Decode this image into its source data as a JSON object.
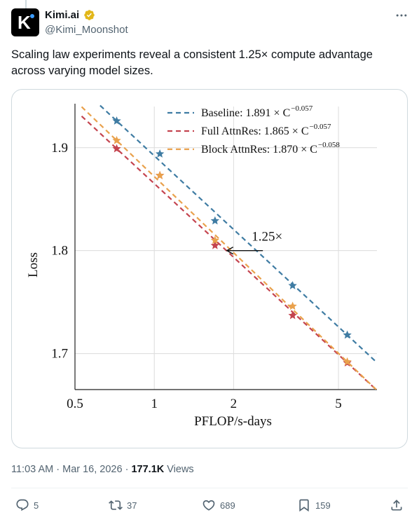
{
  "author": {
    "name": "Kimi.ai",
    "handle": "@Kimi_Moonshot",
    "avatar_letter": "K",
    "verified_icon": "verified-badge-icon",
    "verified_color": "#e2b719"
  },
  "tweet": {
    "text": "Scaling law experiments reveal a consistent 1.25× compute advantage across varying model sizes."
  },
  "meta": {
    "time": "11:03 AM",
    "dot1": "·",
    "date": "Mar 16, 2026",
    "dot2": "·",
    "views_count": "177.1K",
    "views_label": "Views"
  },
  "actions": {
    "replies": "5",
    "reposts": "37",
    "likes": "689",
    "bookmarks": "159"
  },
  "colors": {
    "baseline": "#3f7ca3",
    "full": "#c4444f",
    "block": "#e9a14c"
  },
  "chart_data": {
    "type": "line",
    "xscale": "log",
    "xlabel": "PFLOP/s-days",
    "ylabel": "Loss",
    "xlim": [
      0.5,
      7.0
    ],
    "ylim": [
      1.665,
      1.94
    ],
    "xticks": [
      {
        "value": 0.5,
        "label": "0.5"
      },
      {
        "value": 1,
        "label": "1"
      },
      {
        "value": 2,
        "label": "2"
      },
      {
        "value": 5,
        "label": "5"
      }
    ],
    "yticks": [
      {
        "value": 1.7,
        "label": "1.7"
      },
      {
        "value": 1.8,
        "label": "1.8"
      },
      {
        "value": 1.9,
        "label": "1.9"
      }
    ],
    "grid": true,
    "legend_position": "top-right",
    "series": [
      {
        "key": "baseline",
        "name": "Baseline: 1.891 × C",
        "exponent": "−0.057",
        "a": 1.891,
        "b": -0.057,
        "points": [
          [
            0.72,
            1.926
          ],
          [
            1.05,
            1.894
          ],
          [
            1.7,
            1.829
          ],
          [
            3.35,
            1.766
          ],
          [
            5.4,
            1.718
          ]
        ]
      },
      {
        "key": "full",
        "name": "Full AttnRes: 1.865 × C",
        "exponent": "−0.057",
        "a": 1.865,
        "b": -0.057,
        "points": [
          [
            0.72,
            1.899
          ],
          [
            1.05,
            1.873
          ],
          [
            1.7,
            1.805
          ],
          [
            3.35,
            1.737
          ],
          [
            5.4,
            1.691
          ]
        ]
      },
      {
        "key": "block",
        "name": "Block AttnRes: 1.870 × C",
        "exponent": "−0.058",
        "a": 1.87,
        "b": -0.058,
        "points": [
          [
            0.72,
            1.907
          ],
          [
            1.05,
            1.873
          ],
          [
            1.7,
            1.81
          ],
          [
            3.35,
            1.746
          ],
          [
            5.4,
            1.692
          ]
        ]
      }
    ],
    "annotation": {
      "text": "1.25×",
      "arrow_y": 1.8,
      "arrow_from_x": 2.4,
      "arrow_to_x": 1.92
    }
  }
}
